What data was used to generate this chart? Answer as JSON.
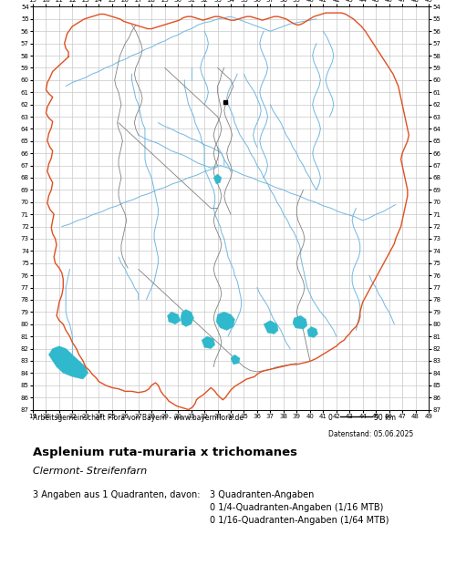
{
  "title": "Asplenium ruta-muraria x trichomanes",
  "subtitle": "Clermont- Streifenfarn",
  "attribution": "Arbeitsgemeinschaft Flora von Bayern - www.bayernflora.de",
  "date_label": "Datenstand: 05.06.2025",
  "scale_label_left": "0",
  "scale_label_right": "50 km",
  "stats_line1": "3 Angaben aus 1 Quadranten, davon:",
  "stats_right1": "3 Quadranten-Angaben",
  "stats_right2": "0 1/4-Quadranten-Angaben (1/16 MTB)",
  "stats_right3": "0 1/16-Quadranten-Angaben (1/64 MTB)",
  "x_ticks": [
    19,
    20,
    21,
    22,
    23,
    24,
    25,
    26,
    27,
    28,
    29,
    30,
    31,
    32,
    33,
    34,
    35,
    36,
    37,
    38,
    39,
    40,
    41,
    42,
    43,
    44,
    45,
    46,
    47,
    48,
    49
  ],
  "y_ticks": [
    54,
    55,
    56,
    57,
    58,
    59,
    60,
    61,
    62,
    63,
    64,
    65,
    66,
    67,
    68,
    69,
    70,
    71,
    72,
    73,
    74,
    75,
    76,
    77,
    78,
    79,
    80,
    81,
    82,
    83,
    84,
    85,
    86,
    87
  ],
  "x_min": 19,
  "x_max": 49,
  "y_min": 54,
  "y_max": 87,
  "grid_color": "#c8c8c8",
  "background_color": "#ffffff",
  "border_color": "#e05020",
  "district_color": "#808080",
  "river_color": "#70b8e0",
  "water_color": "#30b8cc",
  "data_point_color": "#000000",
  "data_point_x": 33.6,
  "data_point_y": 61.8,
  "fig_width": 5.0,
  "fig_height": 6.2
}
